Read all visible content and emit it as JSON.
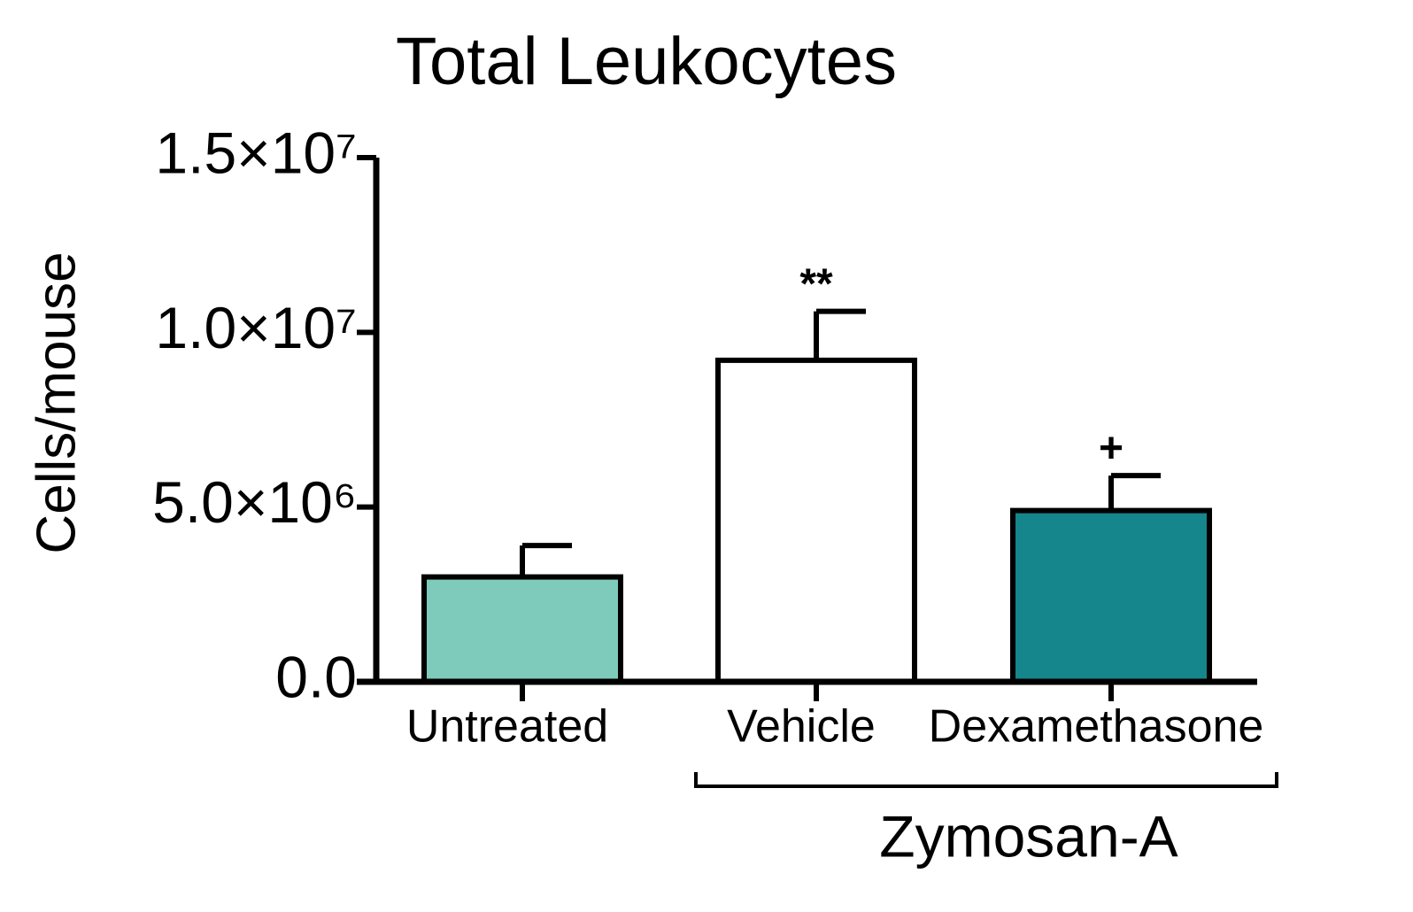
{
  "chart_data": {
    "type": "bar",
    "title": "Total Leukocytes",
    "y_label": "Cells/mouse",
    "categories": [
      "Untreated",
      "Vehicle",
      "Dexamethasone"
    ],
    "values": [
      3000000,
      9200000,
      4900000
    ],
    "errors": [
      900000,
      1400000,
      1000000
    ],
    "colors": [
      "#7ecbbb",
      "#ffffff",
      "#15868c"
    ],
    "annotations": [
      null,
      "**",
      "+"
    ],
    "group_label": "Zymosan-A",
    "ylim": [
      0,
      15000000
    ],
    "yticks": [
      {
        "value": 0,
        "label": "0.0"
      },
      {
        "value": 5000000,
        "label": "5.0×10⁶"
      },
      {
        "value": 10000000,
        "label": "1.0×10⁷"
      },
      {
        "value": 15000000,
        "label": "1.5×10⁷"
      }
    ],
    "grid": false
  }
}
